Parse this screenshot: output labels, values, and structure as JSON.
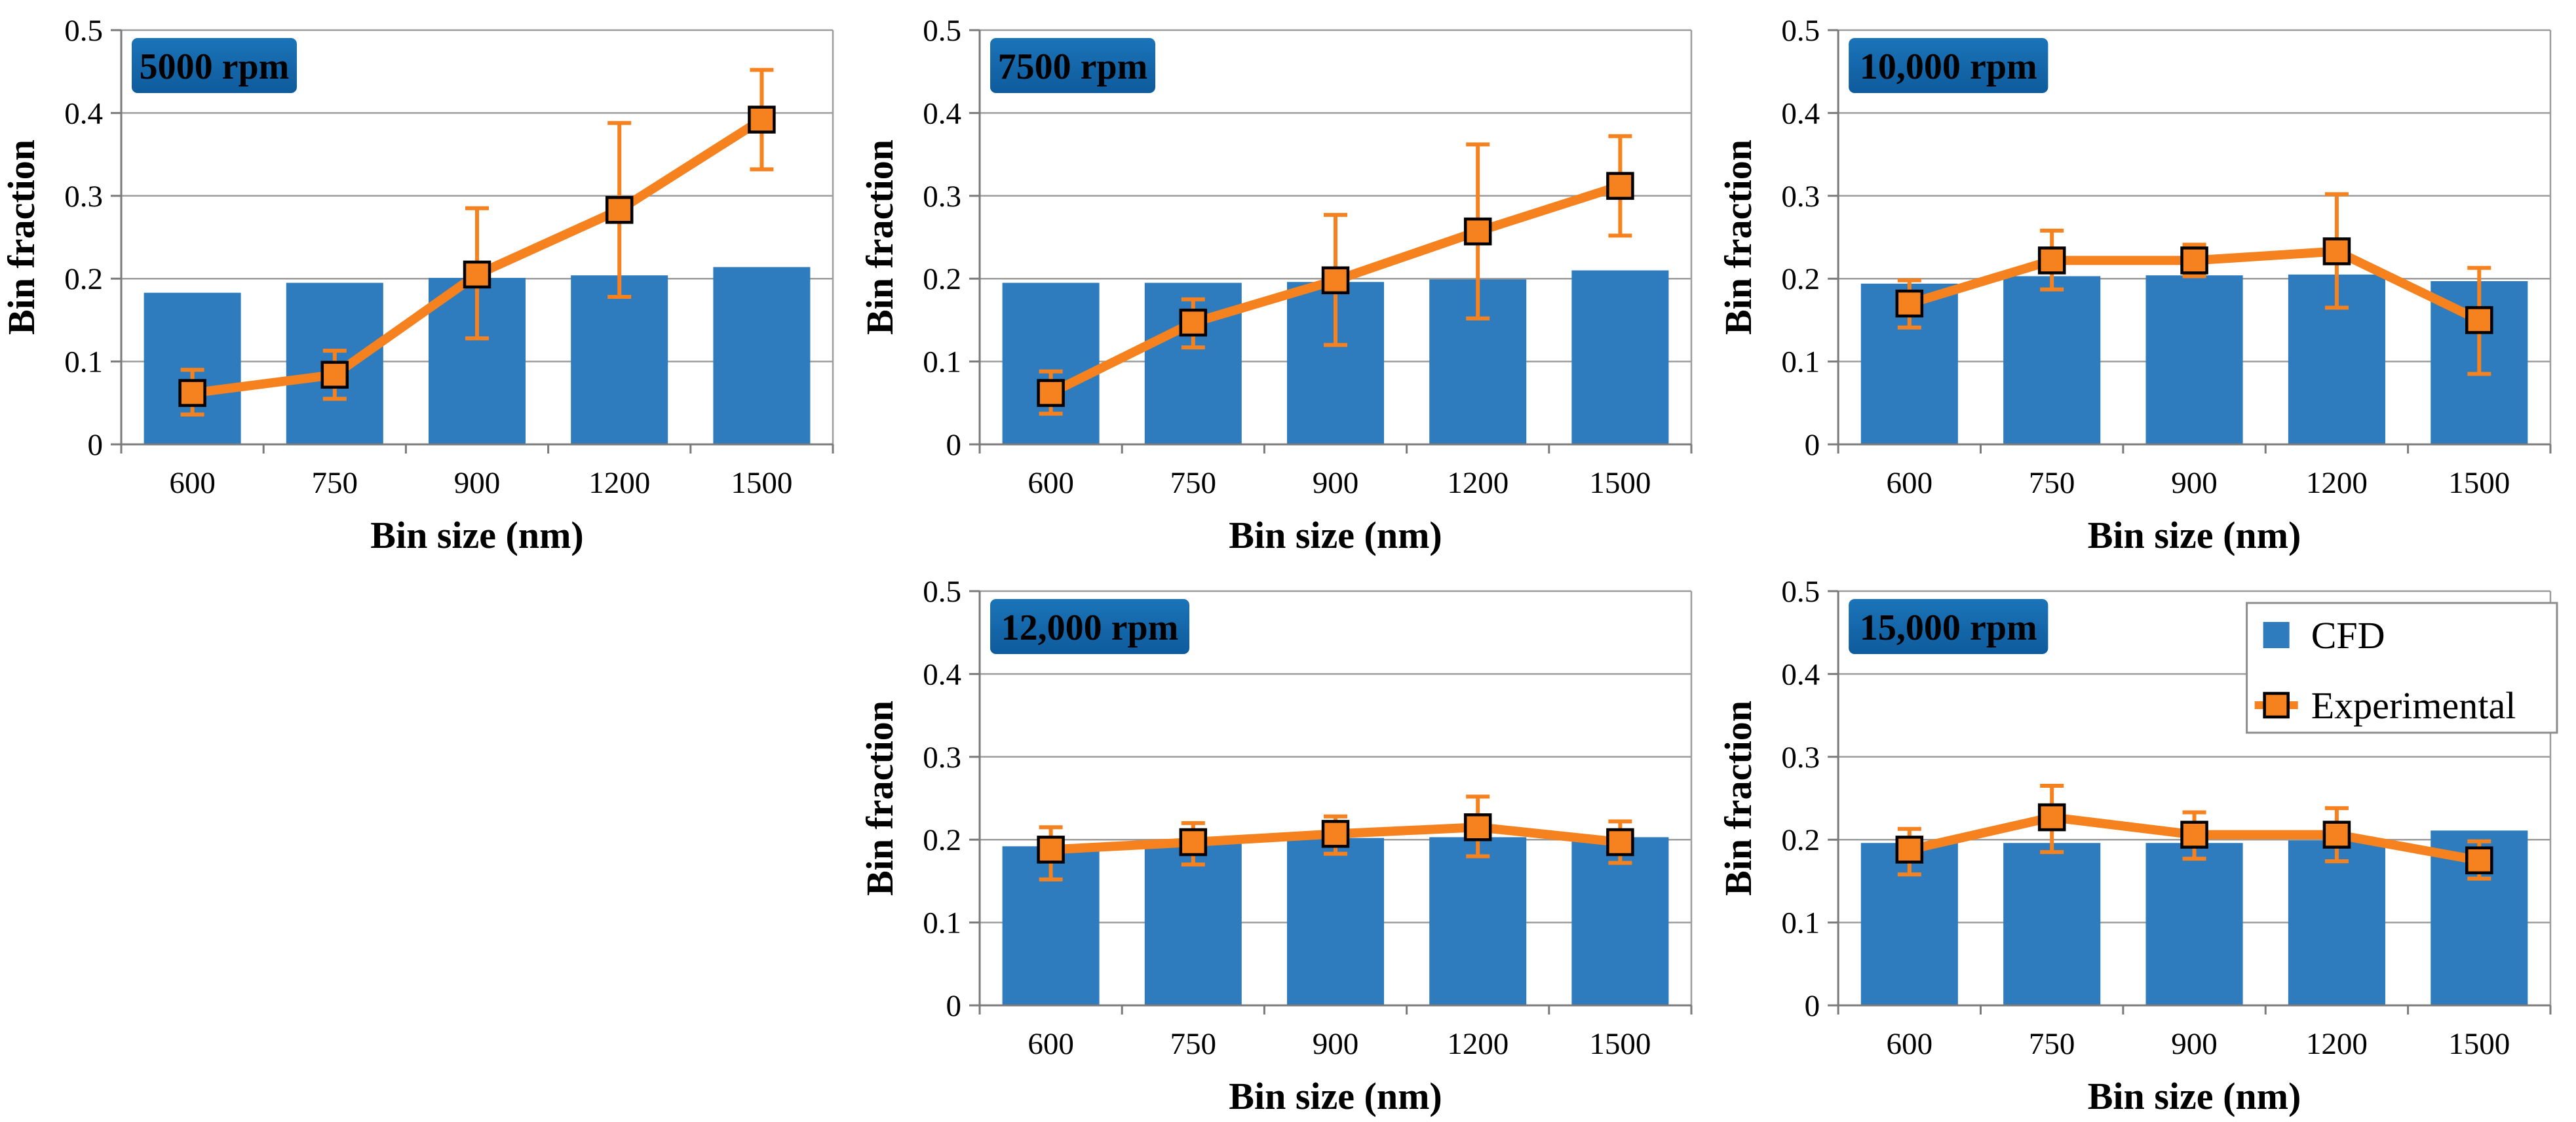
{
  "figure": {
    "background": "#FFFFFF",
    "colors": {
      "bar": "#2E7CBE",
      "line": "#F5821F",
      "marker_fill": "#F5821F",
      "marker_stroke": "#000000",
      "grid": "#9C9C9C",
      "axis": "#7A7A7A",
      "badge_top": "#1B74B8",
      "badge_bottom": "#0E5B9D",
      "badge_text": "#FFFFFF",
      "legend_border": "#8C8C8C",
      "legend_background": "#FFFFFF",
      "text": "#000000"
    },
    "legend": {
      "position": "top-right-of-last-chart",
      "items": [
        {
          "label": "CFD",
          "swatch": "blue-square"
        },
        {
          "label": "Experimental",
          "swatch": "orange-square-marker-with-line"
        }
      ]
    }
  },
  "chart_data": [
    {
      "type": "bar",
      "badge": "5000 rpm",
      "xlabel": "Bin size (nm)",
      "ylabel": "Bin fraction",
      "categories": [
        "600",
        "750",
        "900",
        "1200",
        "1500"
      ],
      "ylim": [
        0,
        0.5
      ],
      "yticks": [
        "0",
        "0.1",
        "0.2",
        "0.3",
        "0.4",
        "0.5"
      ],
      "grid": true,
      "show_legend": false,
      "series": [
        {
          "name": "CFD",
          "type": "bar",
          "values": [
            0.183,
            0.195,
            0.201,
            0.204,
            0.214
          ]
        },
        {
          "name": "Experimental",
          "type": "line",
          "values": [
            0.062,
            0.084,
            0.205,
            0.283,
            0.392
          ],
          "err_low": [
            0.036,
            0.055,
            0.128,
            0.178,
            0.332
          ],
          "err_high": [
            0.09,
            0.113,
            0.285,
            0.388,
            0.452
          ]
        }
      ]
    },
    {
      "type": "bar",
      "badge": "7500 rpm",
      "xlabel": "Bin size (nm)",
      "ylabel": "Bin fraction",
      "categories": [
        "600",
        "750",
        "900",
        "1200",
        "1500"
      ],
      "ylim": [
        0,
        0.5
      ],
      "yticks": [
        "0",
        "0.1",
        "0.2",
        "0.3",
        "0.4",
        "0.5"
      ],
      "grid": true,
      "show_legend": false,
      "series": [
        {
          "name": "CFD",
          "type": "bar",
          "values": [
            0.195,
            0.195,
            0.196,
            0.199,
            0.21
          ]
        },
        {
          "name": "Experimental",
          "type": "line",
          "values": [
            0.062,
            0.147,
            0.198,
            0.257,
            0.312
          ],
          "err_low": [
            0.037,
            0.117,
            0.12,
            0.152,
            0.252
          ],
          "err_high": [
            0.088,
            0.175,
            0.277,
            0.362,
            0.372
          ]
        }
      ]
    },
    {
      "type": "bar",
      "badge": "10,000 rpm",
      "xlabel": "Bin size (nm)",
      "ylabel": "Bin fraction",
      "categories": [
        "600",
        "750",
        "900",
        "1200",
        "1500"
      ],
      "ylim": [
        0,
        0.5
      ],
      "yticks": [
        "0",
        "0.1",
        "0.2",
        "0.3",
        "0.4",
        "0.5"
      ],
      "grid": true,
      "show_legend": false,
      "series": [
        {
          "name": "CFD",
          "type": "bar",
          "values": [
            0.194,
            0.203,
            0.204,
            0.205,
            0.197
          ]
        },
        {
          "name": "Experimental",
          "type": "line",
          "values": [
            0.17,
            0.222,
            0.222,
            0.233,
            0.15
          ],
          "err_low": [
            0.141,
            0.187,
            0.203,
            0.165,
            0.085
          ],
          "err_high": [
            0.198,
            0.258,
            0.241,
            0.302,
            0.213
          ]
        }
      ]
    },
    {
      "type": "bar",
      "badge": "12,000 rpm",
      "xlabel": "Bin size (nm)",
      "ylabel": "Bin fraction",
      "categories": [
        "600",
        "750",
        "900",
        "1200",
        "1500"
      ],
      "ylim": [
        0,
        0.5
      ],
      "yticks": [
        "0",
        "0.1",
        "0.2",
        "0.3",
        "0.4",
        "0.5"
      ],
      "grid": true,
      "show_legend": false,
      "series": [
        {
          "name": "CFD",
          "type": "bar",
          "values": [
            0.192,
            0.195,
            0.202,
            0.203,
            0.203
          ]
        },
        {
          "name": "Experimental",
          "type": "line",
          "values": [
            0.188,
            0.197,
            0.207,
            0.215,
            0.197
          ],
          "err_low": [
            0.152,
            0.17,
            0.183,
            0.18,
            0.172
          ],
          "err_high": [
            0.215,
            0.22,
            0.228,
            0.252,
            0.222
          ]
        }
      ]
    },
    {
      "type": "bar",
      "badge": "15,000 rpm",
      "xlabel": "Bin size (nm)",
      "ylabel": "Bin fraction",
      "categories": [
        "600",
        "750",
        "900",
        "1200",
        "1500"
      ],
      "ylim": [
        0,
        0.5
      ],
      "yticks": [
        "0",
        "0.1",
        "0.2",
        "0.3",
        "0.4",
        "0.5"
      ],
      "grid": true,
      "show_legend": true,
      "series": [
        {
          "name": "CFD",
          "type": "bar",
          "values": [
            0.196,
            0.196,
            0.196,
            0.199,
            0.211
          ]
        },
        {
          "name": "Experimental",
          "type": "line",
          "values": [
            0.188,
            0.227,
            0.206,
            0.206,
            0.175
          ],
          "err_low": [
            0.158,
            0.185,
            0.177,
            0.174,
            0.153
          ],
          "err_high": [
            0.213,
            0.265,
            0.233,
            0.238,
            0.198
          ]
        }
      ]
    }
  ]
}
